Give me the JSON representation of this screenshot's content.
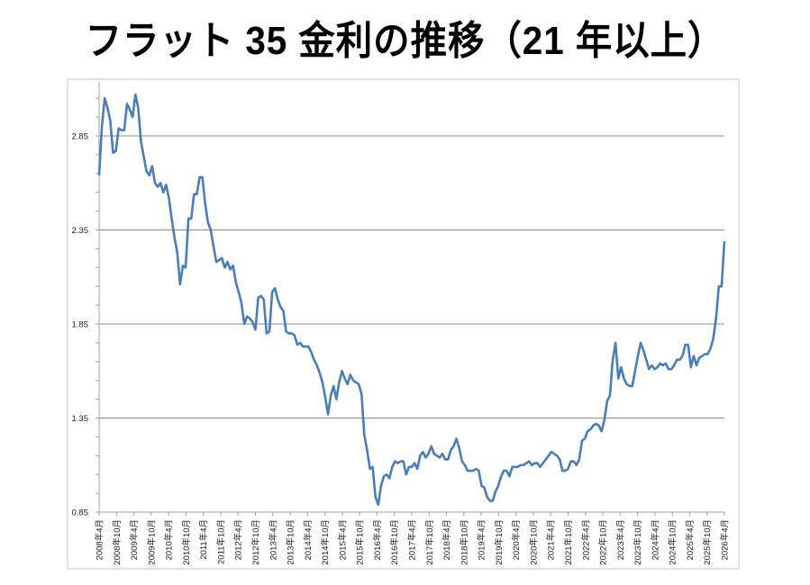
{
  "chart_data": {
    "type": "line",
    "title": "フラット 35 金利の推移（21 年以上）",
    "xlabel": "",
    "ylabel": "",
    "ylim": [
      0.85,
      3.14
    ],
    "yticks": [
      "0.85",
      "1.35",
      "1.85",
      "2.35",
      "2.85"
    ],
    "ytick_values": [
      0.85,
      1.35,
      1.85,
      2.35,
      2.85
    ],
    "grid": "horizontal",
    "legend": "none",
    "x_frequency": "monthly",
    "x_tick_labels": [
      "2008年4月",
      "2008年10月",
      "2009年4月",
      "2009年10月",
      "2010年4月",
      "2010年10月",
      "2011年4月",
      "2011年10月",
      "2012年4月",
      "2012年10月",
      "2013年4月",
      "2013年10月",
      "2014年4月",
      "2014年10月",
      "2015年4月",
      "2015年10月",
      "2016年4月",
      "2016年10月",
      "2017年4月",
      "2017年10月",
      "2018年4月",
      "2018年10月",
      "2019年4月",
      "2019年10月",
      "2020年4月",
      "2020年10月",
      "2021年4月",
      "2021年10月",
      "2022年4月",
      "2022年10月",
      "2023年4月",
      "2023年10月",
      "2024年4月",
      "2024年10月",
      "2025年4月",
      "2025年10月",
      "2026年4月"
    ],
    "colors": {
      "line": "#4a7ebb",
      "grid": "#8c8c8c",
      "axis": "#a0a0a0"
    },
    "values": [
      2.64,
      2.9,
      3.05,
      3.0,
      2.93,
      2.76,
      2.77,
      2.89,
      2.88,
      2.88,
      3.02,
      2.99,
      2.95,
      3.07,
      3.0,
      2.82,
      2.74,
      2.66,
      2.64,
      2.69,
      2.6,
      2.58,
      2.6,
      2.55,
      2.59,
      2.52,
      2.41,
      2.31,
      2.23,
      2.06,
      2.16,
      2.15,
      2.41,
      2.41,
      2.54,
      2.54,
      2.63,
      2.63,
      2.49,
      2.39,
      2.35,
      2.26,
      2.18,
      2.19,
      2.2,
      2.15,
      2.18,
      2.14,
      2.16,
      2.07,
      2.02,
      1.96,
      1.85,
      1.89,
      1.88,
      1.86,
      1.82,
      1.99,
      2.0,
      1.98,
      1.8,
      1.81,
      2.02,
      2.04,
      1.98,
      1.94,
      1.92,
      1.81,
      1.8,
      1.8,
      1.79,
      1.74,
      1.75,
      1.73,
      1.73,
      1.73,
      1.7,
      1.66,
      1.63,
      1.59,
      1.54,
      1.46,
      1.37,
      1.47,
      1.52,
      1.45,
      1.54,
      1.6,
      1.56,
      1.53,
      1.58,
      1.55,
      1.54,
      1.53,
      1.48,
      1.26,
      1.18,
      1.08,
      1.09,
      0.93,
      0.89,
      0.99,
      1.04,
      1.05,
      1.03,
      1.09,
      1.12,
      1.11,
      1.12,
      1.12,
      1.05,
      1.09,
      1.09,
      1.11,
      1.08,
      1.15,
      1.17,
      1.14,
      1.16,
      1.2,
      1.16,
      1.15,
      1.14,
      1.16,
      1.13,
      1.13,
      1.18,
      1.2,
      1.24,
      1.19,
      1.12,
      1.1,
      1.07,
      1.07,
      1.07,
      1.08,
      1.07,
      0.99,
      0.98,
      0.93,
      0.91,
      0.91,
      0.96,
      0.99,
      1.04,
      1.07,
      1.07,
      1.04,
      1.09,
      1.09,
      1.09,
      1.1,
      1.1,
      1.11,
      1.12,
      1.1,
      1.11,
      1.11,
      1.09,
      1.11,
      1.13,
      1.15,
      1.17,
      1.16,
      1.15,
      1.13,
      1.07,
      1.07,
      1.08,
      1.12,
      1.12,
      1.1,
      1.13,
      1.23,
      1.24,
      1.28,
      1.29,
      1.31,
      1.32,
      1.31,
      1.28,
      1.34,
      1.44,
      1.47,
      1.66,
      1.75,
      1.56,
      1.62,
      1.56,
      1.53,
      1.52,
      1.52,
      1.6,
      1.68,
      1.75,
      1.71,
      1.66,
      1.61,
      1.63,
      1.61,
      1.62,
      1.64,
      1.63,
      1.64,
      1.61,
      1.61,
      1.63,
      1.66,
      1.66,
      1.68,
      1.74,
      1.74,
      1.62,
      1.68,
      1.63,
      1.67,
      1.68,
      1.69,
      1.69,
      1.72,
      1.77,
      1.88,
      2.05,
      2.05,
      2.29
    ]
  }
}
